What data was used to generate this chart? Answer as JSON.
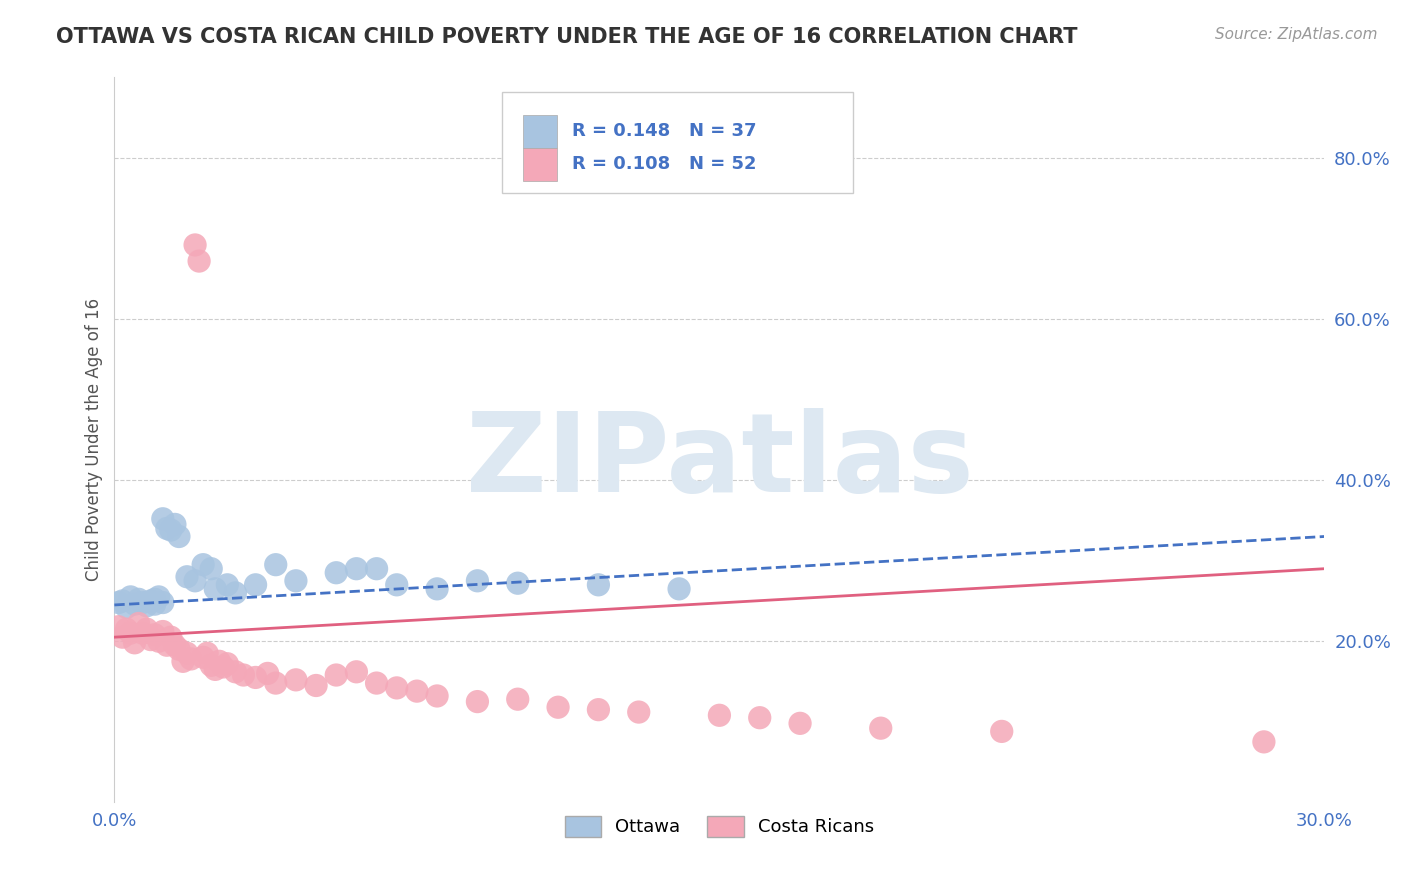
{
  "title": "OTTAWA VS COSTA RICAN CHILD POVERTY UNDER THE AGE OF 16 CORRELATION CHART",
  "source": "Source: ZipAtlas.com",
  "ylabel": "Child Poverty Under the Age of 16",
  "xlim": [
    0.0,
    0.3
  ],
  "ylim": [
    0.0,
    0.9
  ],
  "yticks": [
    0.2,
    0.4,
    0.6,
    0.8
  ],
  "ytick_labels": [
    "20.0%",
    "40.0%",
    "60.0%",
    "80.0%"
  ],
  "xticks": [
    0.0,
    0.05,
    0.1,
    0.15,
    0.2,
    0.25,
    0.3
  ],
  "xtick_labels": [
    "0.0%",
    "",
    "",
    "",
    "",
    "",
    "30.0%"
  ],
  "ottawa_R": 0.148,
  "ottawa_N": 37,
  "costaricans_R": 0.108,
  "costaricans_N": 52,
  "ottawa_color": "#a8c4e0",
  "ottawa_line_color": "#4472c4",
  "costarican_color": "#f4a8b8",
  "costarican_line_color": "#e06080",
  "legend_text_color": "#4472c4",
  "background_color": "#ffffff",
  "grid_color": "#c8c8c8",
  "title_color": "#333333",
  "source_color": "#999999",
  "watermark_color": "#dde8f2",
  "ottawa_trend_x": [
    0.0,
    0.3
  ],
  "ottawa_trend_y": [
    0.245,
    0.33
  ],
  "costarican_trend_x": [
    0.0,
    0.3
  ],
  "costarican_trend_y": [
    0.205,
    0.29
  ],
  "ottawa_x": [
    0.001,
    0.002,
    0.003,
    0.004,
    0.005,
    0.006,
    0.007,
    0.008,
    0.009,
    0.01,
    0.01,
    0.011,
    0.012,
    0.012,
    0.013,
    0.014,
    0.015,
    0.016,
    0.018,
    0.02,
    0.022,
    0.024,
    0.025,
    0.028,
    0.03,
    0.035,
    0.04,
    0.045,
    0.055,
    0.06,
    0.065,
    0.07,
    0.08,
    0.09,
    0.1,
    0.12,
    0.14
  ],
  "ottawa_y": [
    0.248,
    0.25,
    0.242,
    0.255,
    0.246,
    0.252,
    0.248,
    0.244,
    0.25,
    0.246,
    0.252,
    0.255,
    0.248,
    0.352,
    0.34,
    0.338,
    0.345,
    0.33,
    0.28,
    0.275,
    0.295,
    0.29,
    0.265,
    0.27,
    0.26,
    0.27,
    0.295,
    0.275,
    0.285,
    0.29,
    0.29,
    0.27,
    0.265,
    0.275,
    0.272,
    0.27,
    0.265
  ],
  "costarican_x": [
    0.001,
    0.002,
    0.003,
    0.004,
    0.005,
    0.006,
    0.007,
    0.008,
    0.009,
    0.01,
    0.011,
    0.012,
    0.013,
    0.014,
    0.015,
    0.016,
    0.017,
    0.018,
    0.019,
    0.02,
    0.021,
    0.022,
    0.023,
    0.024,
    0.025,
    0.026,
    0.027,
    0.028,
    0.03,
    0.032,
    0.035,
    0.038,
    0.04,
    0.045,
    0.05,
    0.055,
    0.06,
    0.065,
    0.07,
    0.075,
    0.08,
    0.09,
    0.1,
    0.11,
    0.12,
    0.13,
    0.15,
    0.16,
    0.17,
    0.19,
    0.22,
    0.285
  ],
  "costarican_y": [
    0.218,
    0.205,
    0.215,
    0.21,
    0.198,
    0.222,
    0.21,
    0.215,
    0.202,
    0.208,
    0.2,
    0.212,
    0.195,
    0.205,
    0.195,
    0.19,
    0.175,
    0.185,
    0.178,
    0.692,
    0.672,
    0.18,
    0.185,
    0.17,
    0.165,
    0.175,
    0.168,
    0.172,
    0.162,
    0.158,
    0.155,
    0.16,
    0.148,
    0.152,
    0.145,
    0.158,
    0.162,
    0.148,
    0.142,
    0.138,
    0.132,
    0.125,
    0.128,
    0.118,
    0.115,
    0.112,
    0.108,
    0.105,
    0.098,
    0.092,
    0.088,
    0.075
  ]
}
